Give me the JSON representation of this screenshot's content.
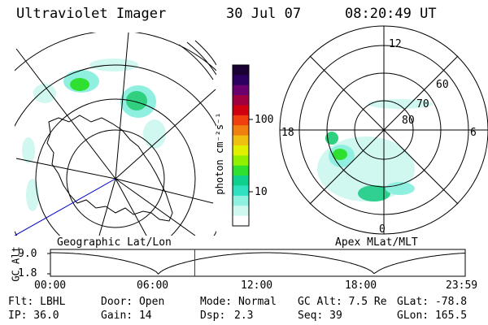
{
  "header": {
    "title": "Ultraviolet Imager",
    "date": "30 Jul 07",
    "time": "08:20:49 UT"
  },
  "colorbar": {
    "label": "photon cm⁻²s⁻¹",
    "ticks": [
      "100",
      "10"
    ],
    "colors": [
      "#1a0033",
      "#2b0060",
      "#6a0070",
      "#a00040",
      "#d00010",
      "#f04010",
      "#f08010",
      "#f0c010",
      "#e0f000",
      "#90f000",
      "#30e030",
      "#10d090",
      "#30e0c0",
      "#90f0e0",
      "#d0f8f0",
      "#ffffff"
    ]
  },
  "left_panel": {
    "label": "Geographic Lat/Lon"
  },
  "right_panel": {
    "label": "Apex MLat/MLT",
    "mlt_labels": {
      "top": "12",
      "left": "18",
      "right": "6",
      "bottom": "0"
    },
    "lat_labels": [
      "60",
      "70",
      "80"
    ]
  },
  "timeline": {
    "ylabel": "GC Alt",
    "yticks": [
      "9.0",
      "1.8"
    ],
    "xticks": [
      "00:00",
      "06:00",
      "12:00",
      "18:00",
      "23:59"
    ],
    "current_time_fraction": 0.348,
    "marker_color": "#cc0000"
  },
  "status": {
    "row1": {
      "filter": "Flt: LBHL",
      "door": "Door: Open",
      "mode": "Mode: Normal",
      "gc_alt": "GC Alt: 7.5 Re",
      "glat": "GLat: -78.8"
    },
    "row2": {
      "ip": "IP: 36.0",
      "gain": "Gain: 14",
      "dsp_label": "Dsp:",
      "dsp_value": "2.3",
      "seq": "Seq: 39",
      "glon": "GLon: 165.5"
    }
  }
}
